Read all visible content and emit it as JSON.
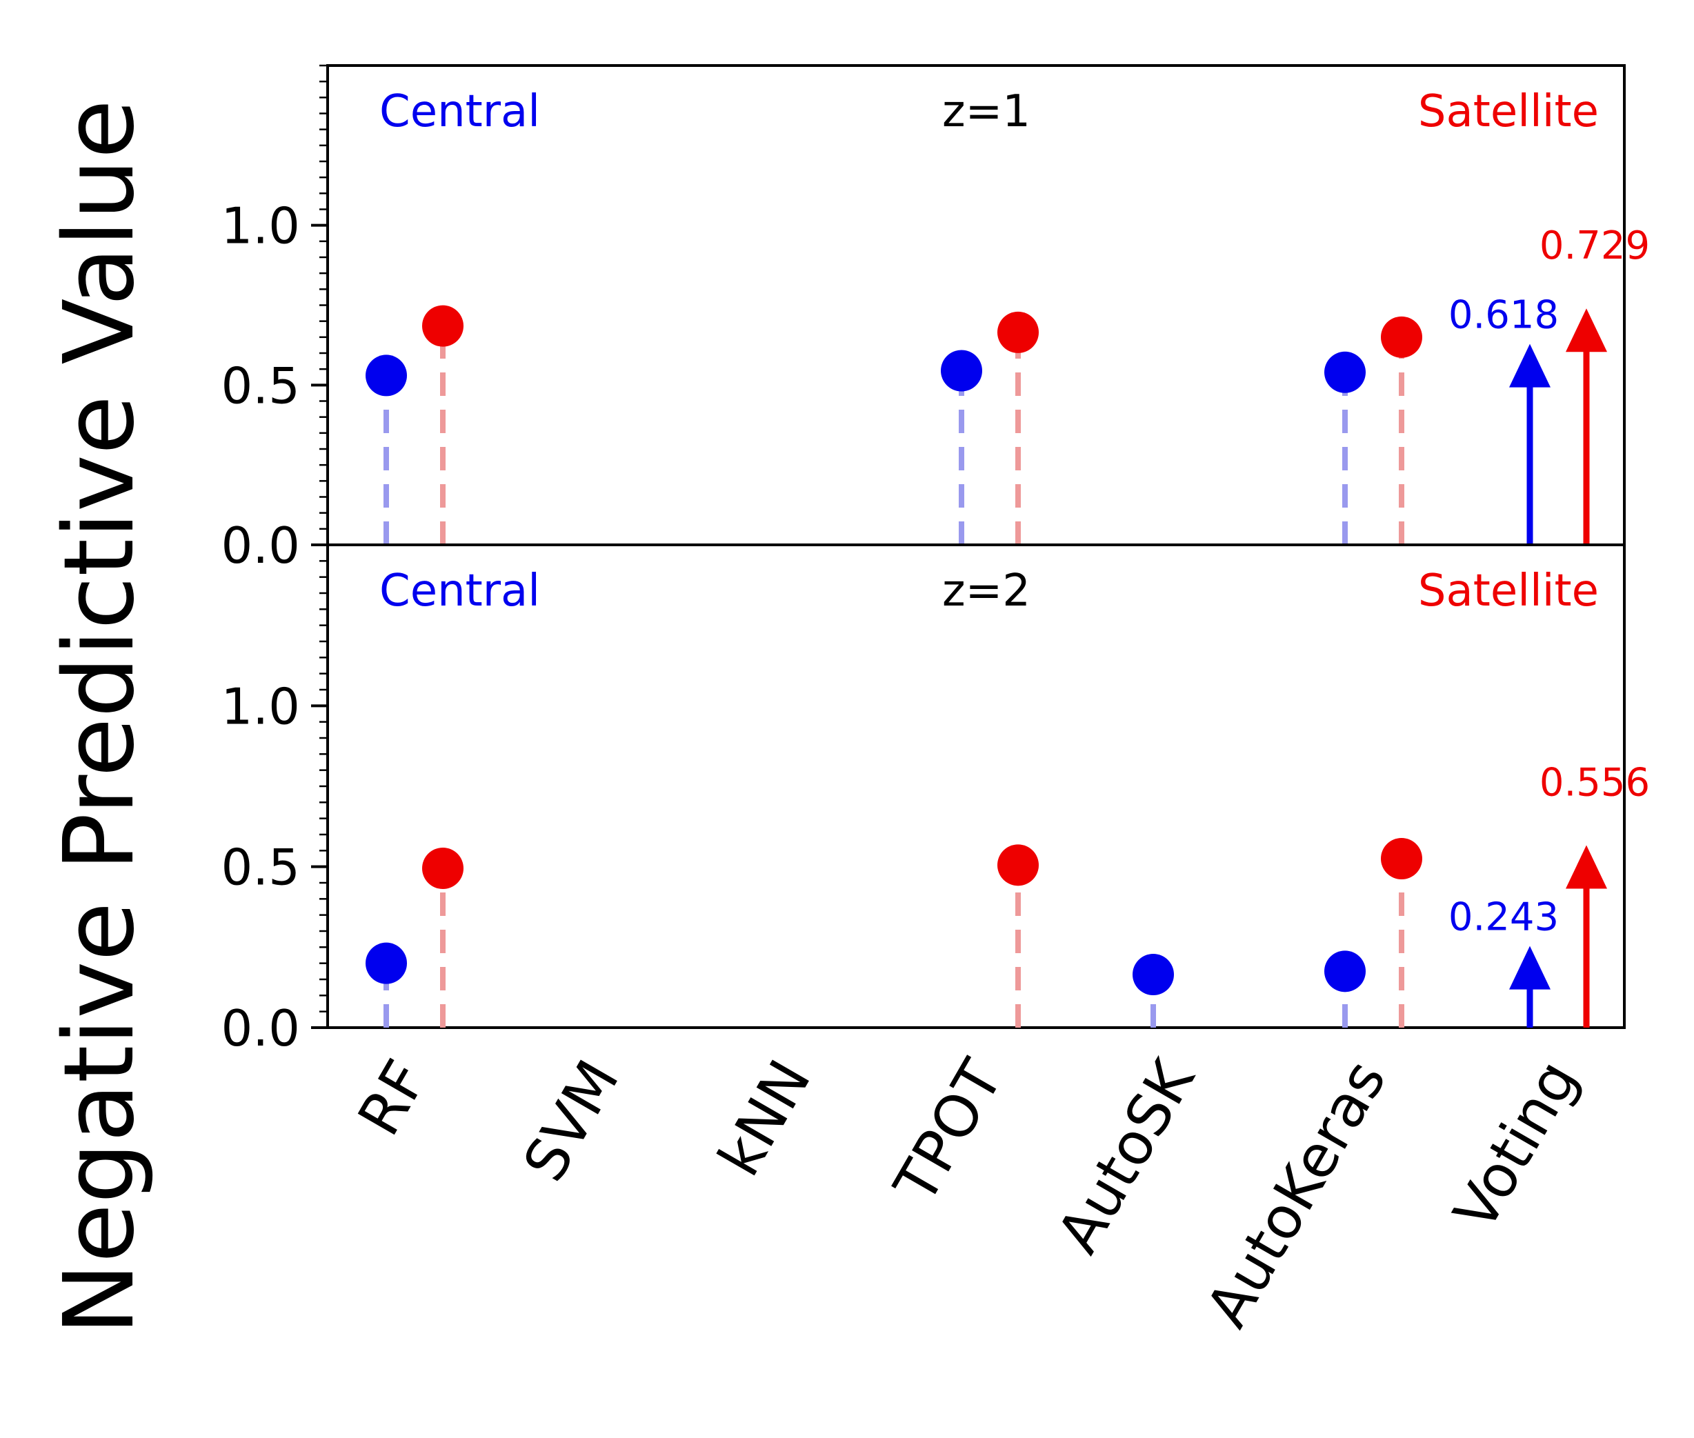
{
  "chart_data": {
    "type": "scatter",
    "ylabel": "Negative Predictive Value",
    "categories": [
      "RF",
      "SVM",
      "kNN",
      "TPOT",
      "AutoSK",
      "AutoKeras",
      "Voting"
    ],
    "ylim": [
      0,
      1.5
    ],
    "yticks": [
      "0.0",
      "0.5",
      "1.0"
    ],
    "colors": {
      "central": "#0000ee",
      "satellite": "#ee0000",
      "central_stem": "#9999ee",
      "satellite_stem": "#ee9999"
    },
    "panels": [
      {
        "label": "z=1",
        "legend_left": "Central",
        "legend_right": "Satellite",
        "central": [
          0.53,
          null,
          null,
          0.545,
          null,
          0.54,
          null
        ],
        "satellite": [
          0.685,
          null,
          null,
          0.665,
          null,
          0.65,
          null
        ],
        "voting_central": 0.618,
        "voting_satellite": 0.729,
        "voting_central_label": "0.618",
        "voting_satellite_label": "0.729"
      },
      {
        "label": "z=2",
        "legend_left": "Central",
        "legend_right": "Satellite",
        "central": [
          0.2,
          null,
          null,
          null,
          0.165,
          0.175,
          null
        ],
        "satellite": [
          0.495,
          null,
          null,
          0.505,
          null,
          0.525,
          null
        ],
        "voting_central": 0.243,
        "voting_satellite": 0.556,
        "voting_central_label": "0.243",
        "voting_satellite_label": "0.556"
      }
    ]
  }
}
